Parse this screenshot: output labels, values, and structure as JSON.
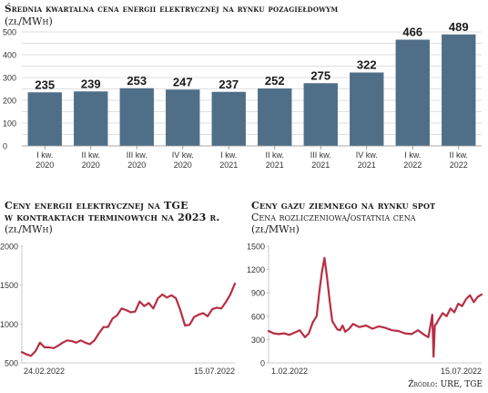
{
  "source": "Źródło: URE, TGE",
  "chart_data": [
    {
      "type": "bar",
      "title": "Średnia kwartalna cena energii elektrycznej na rynku pozagiełdowym",
      "unit": "(zł/MWh)",
      "categories": [
        [
          "I kw.",
          "2020"
        ],
        [
          "II kw.",
          "2020"
        ],
        [
          "III kw.",
          "2020"
        ],
        [
          "IV kw.",
          "2020"
        ],
        [
          "I kw.",
          "2021"
        ],
        [
          "II kw.",
          "2021"
        ],
        [
          "III kw.",
          "2021"
        ],
        [
          "IV kw.",
          "2021"
        ],
        [
          "I kw.",
          "2022"
        ],
        [
          "II kw.",
          "2022"
        ]
      ],
      "values": [
        235,
        239,
        253,
        247,
        237,
        252,
        275,
        322,
        466,
        489
      ],
      "ylim": [
        0,
        500
      ],
      "yticks": [
        0,
        50,
        100,
        150,
        200,
        250,
        300,
        350,
        400,
        450,
        500
      ],
      "ytick_labels": [
        "0",
        "",
        "100",
        "",
        "200",
        "",
        "300",
        "",
        "400",
        "",
        "500"
      ],
      "grid": true,
      "colors": {
        "bar": "#4f6f88",
        "grid": "#d4d4d4"
      }
    },
    {
      "type": "line",
      "title": "Ceny energii elektrycznej na TGE",
      "title_line2": "w kontraktach terminowych na 2023 r.",
      "unit": "(zł/MWh)",
      "x_start_label": "24.02.2022",
      "x_end_label": "15.07.2022",
      "ylim": [
        500,
        2000
      ],
      "yticks": [
        500,
        1000,
        1500,
        2000
      ],
      "x": [
        0,
        3,
        6,
        9,
        12,
        15,
        18,
        21,
        24,
        27,
        30,
        33,
        36,
        39,
        42,
        45,
        48,
        51,
        54,
        57,
        60,
        63,
        66,
        69,
        72,
        75,
        78,
        81,
        84,
        87,
        90,
        93,
        96,
        99,
        102,
        105,
        108,
        111,
        114,
        117,
        120,
        123,
        126,
        129,
        132,
        135,
        138,
        141
      ],
      "y": [
        640,
        610,
        590,
        650,
        760,
        700,
        700,
        690,
        720,
        760,
        790,
        780,
        760,
        790,
        760,
        740,
        790,
        880,
        960,
        960,
        1070,
        1110,
        1200,
        1180,
        1150,
        1160,
        1290,
        1230,
        1270,
        1200,
        1330,
        1380,
        1340,
        1370,
        1330,
        1170,
        980,
        990,
        1090,
        1120,
        1140,
        1100,
        1190,
        1210,
        1200,
        1280,
        1380,
        1520
      ],
      "colors": {
        "line": "#b72e44",
        "axis": "#bdbdbd"
      }
    },
    {
      "type": "line",
      "title": "Ceny gazu ziemnego na rynku spot",
      "subtitle": "Cena rozliczeniowa/ostatnia cena",
      "unit": "(zł/MWh)",
      "x_start_label": "1.02.2022",
      "x_end_label": "15.07.2022",
      "ylim": [
        0,
        1500
      ],
      "yticks": [
        0,
        300,
        600,
        900,
        1200,
        1500
      ],
      "x": [
        0,
        4,
        8,
        12,
        16,
        20,
        24,
        28,
        31,
        34,
        37,
        39,
        41,
        43,
        45,
        47,
        49,
        51,
        53,
        55,
        57,
        59,
        62,
        65,
        70,
        75,
        80,
        85,
        90,
        95,
        100,
        105,
        110,
        115,
        120,
        123,
        125,
        126,
        127,
        128,
        129,
        131,
        134,
        137,
        140,
        143,
        146,
        149,
        152,
        155,
        158,
        161,
        164
      ],
      "y": [
        410,
        380,
        370,
        380,
        360,
        390,
        420,
        330,
        380,
        520,
        600,
        900,
        1160,
        1350,
        1100,
        800,
        540,
        480,
        430,
        420,
        480,
        400,
        440,
        500,
        460,
        480,
        440,
        470,
        450,
        420,
        410,
        380,
        370,
        420,
        360,
        330,
        520,
        620,
        80,
        480,
        500,
        560,
        640,
        600,
        700,
        650,
        760,
        730,
        820,
        870,
        780,
        850,
        880
      ],
      "colors": {
        "line": "#b72e44",
        "axis": "#bdbdbd"
      }
    }
  ]
}
